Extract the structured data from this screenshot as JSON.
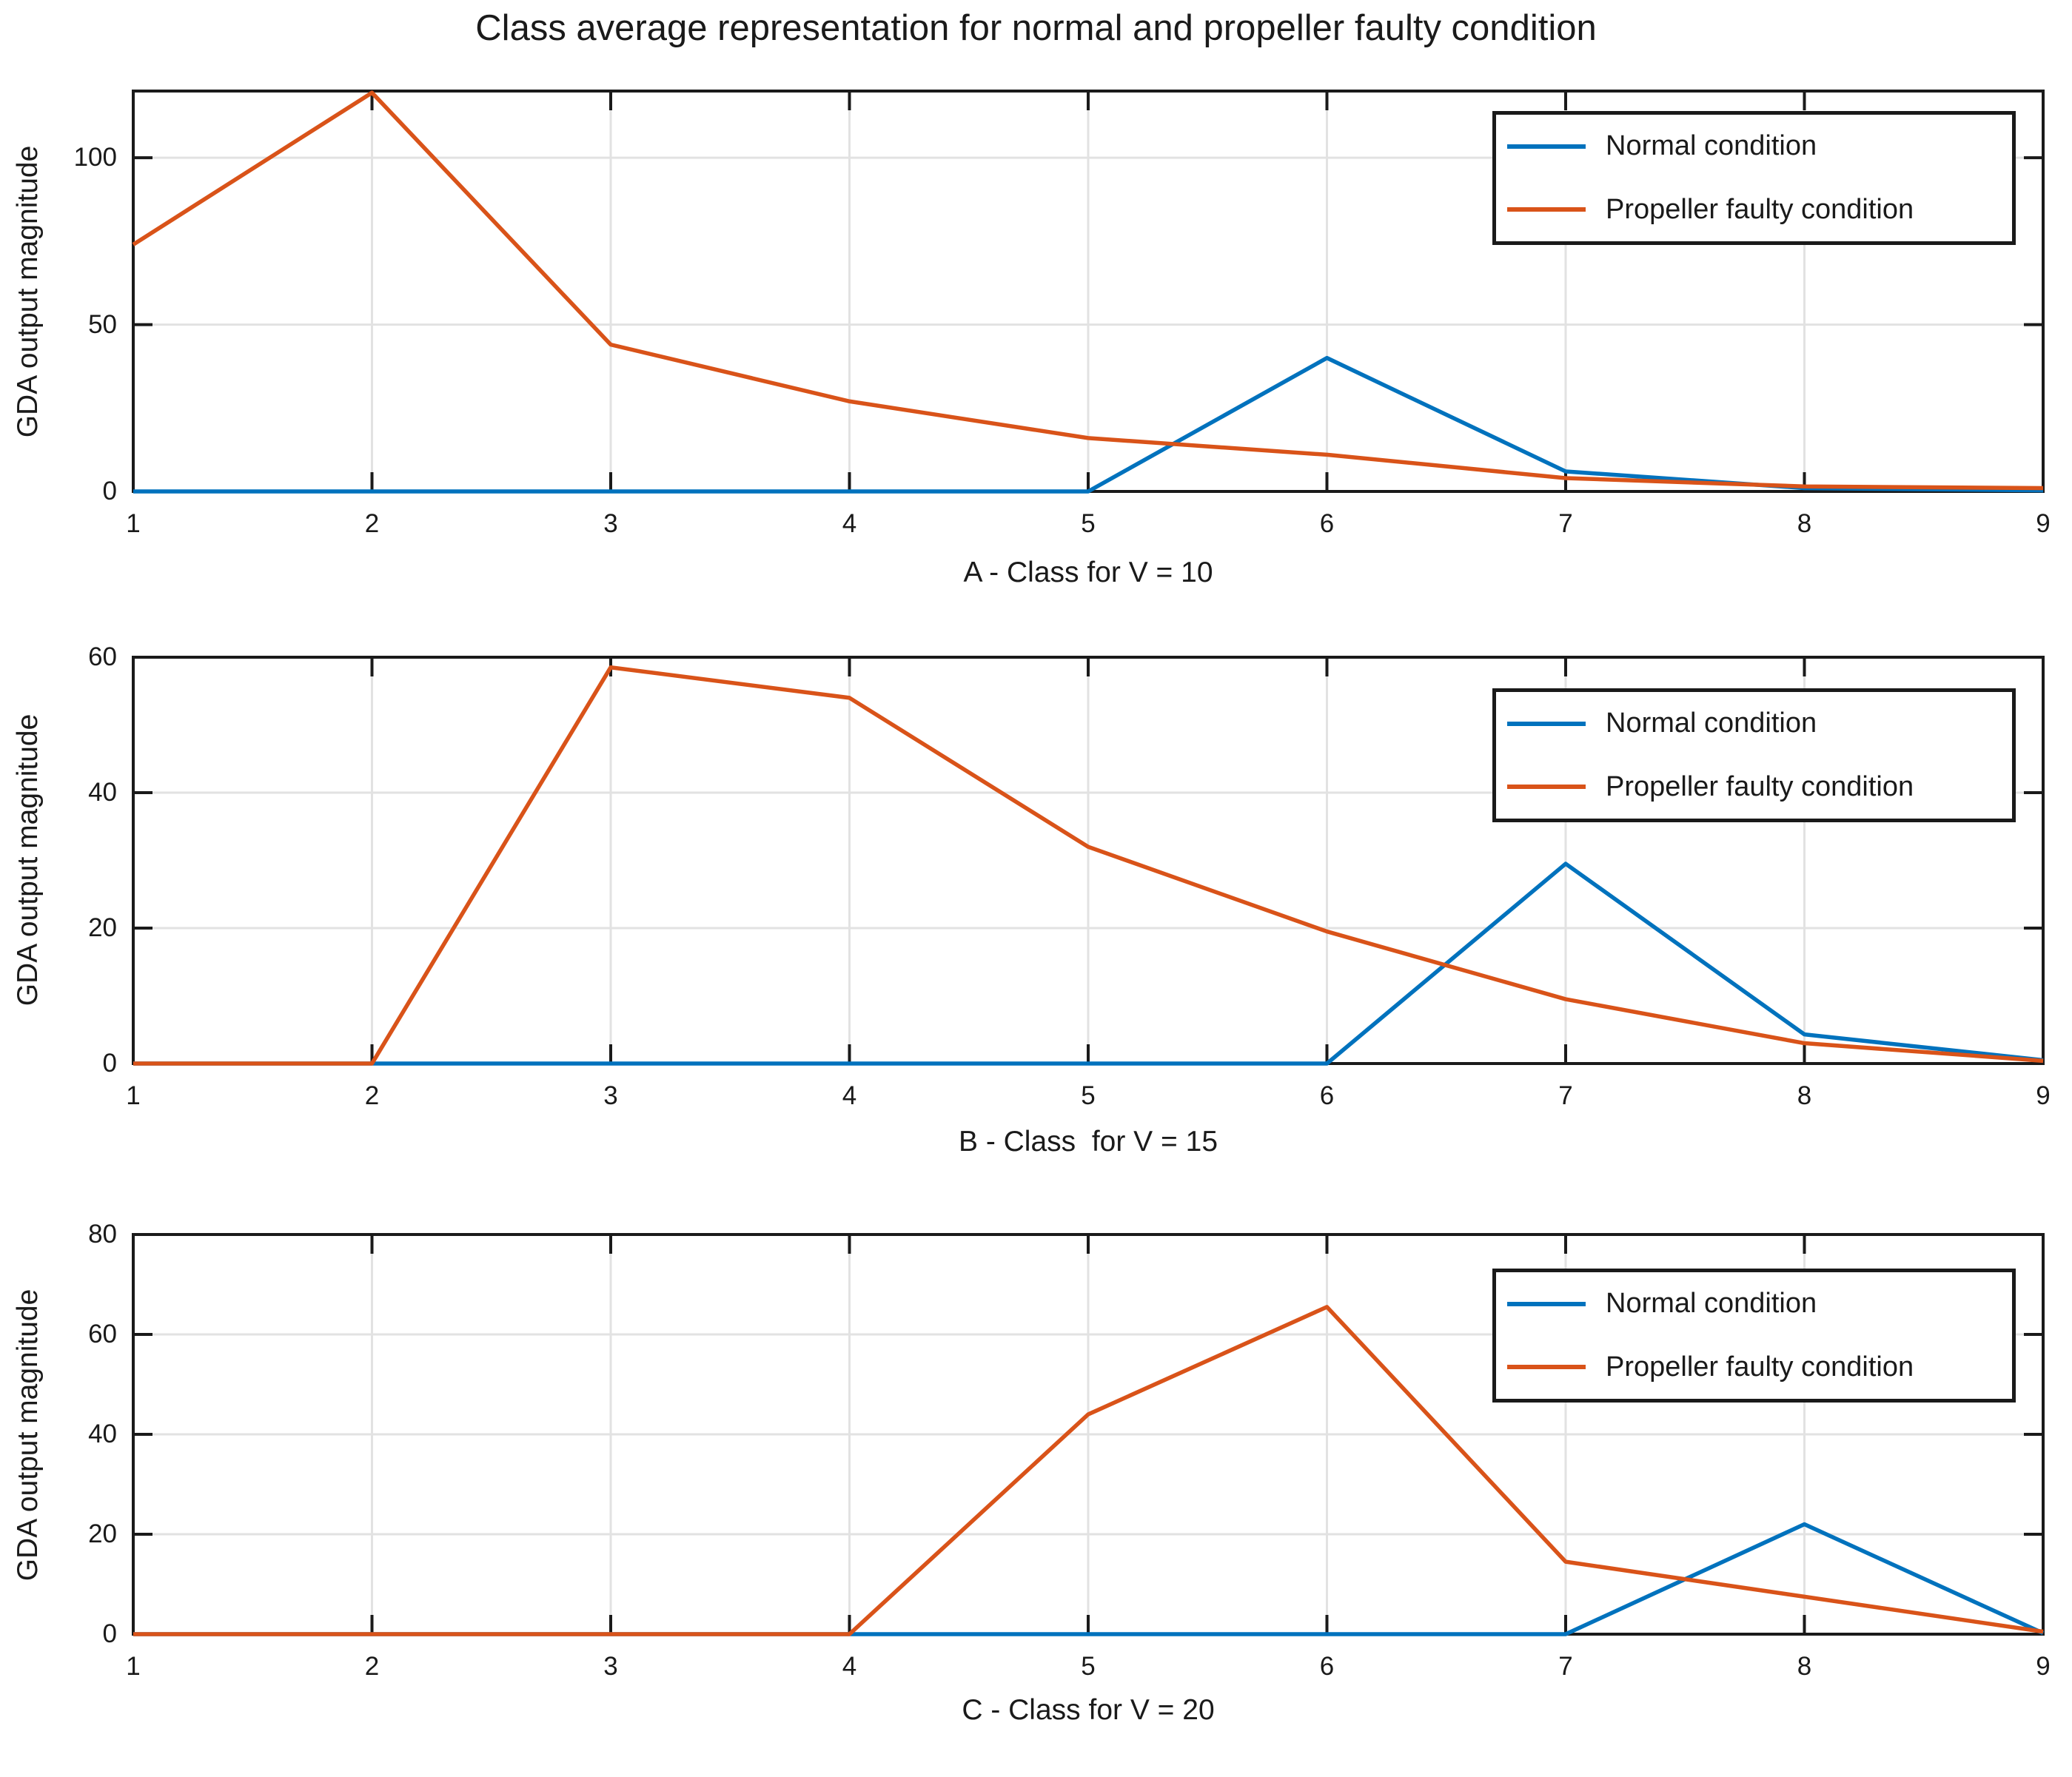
{
  "title": "Class average representation for normal and propeller faulty condition",
  "colors": {
    "normal": "#0072BD",
    "faulty": "#D95319",
    "grid": "#E2E2E2",
    "axis": "#1A1A1A",
    "text": "#1A1A1A",
    "background": "#FFFFFF"
  },
  "legend": {
    "items": [
      {
        "label": "Normal condition"
      },
      {
        "label": "Propeller faulty condition"
      }
    ]
  },
  "chart_data": [
    {
      "type": "line",
      "panel": "A",
      "xlabel": "A - Class for V = 10",
      "ylabel": "GDA output magnitude",
      "xlim": [
        1,
        9
      ],
      "ylim": [
        0,
        120
      ],
      "xticks": [
        1,
        2,
        3,
        4,
        5,
        6,
        7,
        8,
        9
      ],
      "yticks": [
        0,
        50,
        100
      ],
      "grid": true,
      "legend_position": "upper-right",
      "x": [
        1,
        2,
        3,
        4,
        5,
        6,
        7,
        8,
        9
      ],
      "series": [
        {
          "name": "Normal condition",
          "color": "#0072BD",
          "values": [
            0,
            0,
            0,
            0,
            0,
            40,
            6,
            1,
            0.3
          ]
        },
        {
          "name": "Propeller faulty condition",
          "color": "#D95319",
          "values": [
            74,
            119.5,
            44,
            27,
            16,
            11,
            4,
            1.5,
            1
          ]
        }
      ]
    },
    {
      "type": "line",
      "panel": "B",
      "xlabel": "B - Class  for V = 15",
      "ylabel": "GDA output magnitude",
      "xlim": [
        1,
        9
      ],
      "ylim": [
        0,
        60
      ],
      "xticks": [
        1,
        2,
        3,
        4,
        5,
        6,
        7,
        8,
        9
      ],
      "yticks": [
        0,
        20,
        40,
        60
      ],
      "grid": true,
      "legend_position": "upper-right",
      "x": [
        1,
        2,
        3,
        4,
        5,
        6,
        7,
        8,
        9
      ],
      "series": [
        {
          "name": "Normal condition",
          "color": "#0072BD",
          "values": [
            0,
            0,
            0,
            0,
            0,
            0,
            29.5,
            4.3,
            0.5
          ]
        },
        {
          "name": "Propeller faulty condition",
          "color": "#D95319",
          "values": [
            0,
            0,
            58.5,
            54,
            32,
            19.5,
            9.5,
            3,
            0.4
          ]
        }
      ]
    },
    {
      "type": "line",
      "panel": "C",
      "xlabel": "C - Class for V = 20",
      "ylabel": "GDA output magnitude",
      "xlim": [
        1,
        9
      ],
      "ylim": [
        0,
        80
      ],
      "xticks": [
        1,
        2,
        3,
        4,
        5,
        6,
        7,
        8,
        9
      ],
      "yticks": [
        0,
        20,
        40,
        60,
        80
      ],
      "grid": true,
      "legend_position": "upper-right",
      "x": [
        1,
        2,
        3,
        4,
        5,
        6,
        7,
        8,
        9
      ],
      "series": [
        {
          "name": "Normal condition",
          "color": "#0072BD",
          "values": [
            0,
            0,
            0,
            0,
            0,
            0,
            0,
            22,
            0.2
          ]
        },
        {
          "name": "Propeller faulty condition",
          "color": "#D95319",
          "values": [
            0,
            0,
            0,
            0,
            44,
            65.5,
            14.5,
            7.5,
            0.5
          ]
        }
      ]
    }
  ]
}
